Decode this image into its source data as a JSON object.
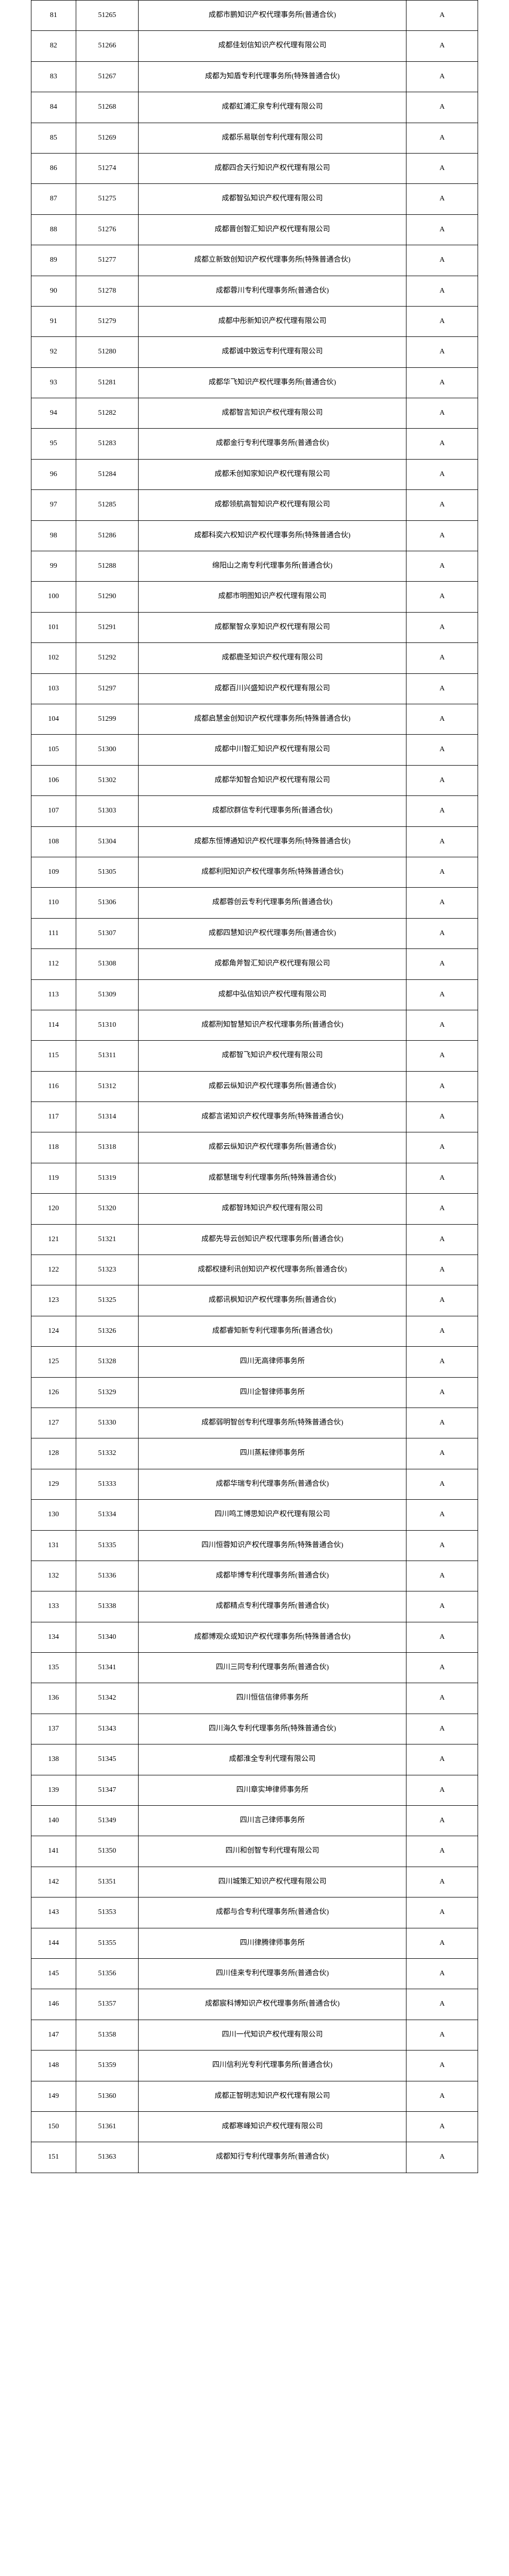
{
  "rows": [
    {
      "idx": 81,
      "code": "51265",
      "name": "成都市鹏知识产权代理事务所(普通合伙)",
      "grade": "A"
    },
    {
      "idx": 82,
      "code": "51266",
      "name": "成都佳划信知识产权代理有限公司",
      "grade": "A"
    },
    {
      "idx": 83,
      "code": "51267",
      "name": "成都为知盾专利代理事务所(特殊普通合伙)",
      "grade": "A"
    },
    {
      "idx": 84,
      "code": "51268",
      "name": "成都虹浦汇泉专利代理有限公司",
      "grade": "A"
    },
    {
      "idx": 85,
      "code": "51269",
      "name": "成都乐易联创专利代理有限公司",
      "grade": "A"
    },
    {
      "idx": 86,
      "code": "51274",
      "name": "成都四合天行知识产权代理有限公司",
      "grade": "A"
    },
    {
      "idx": 87,
      "code": "51275",
      "name": "成都智弘知识产权代理有限公司",
      "grade": "A"
    },
    {
      "idx": 88,
      "code": "51276",
      "name": "成都晋创智汇知识产权代理有限公司",
      "grade": "A"
    },
    {
      "idx": 89,
      "code": "51277",
      "name": "成都立新致创知识产权代理事务所(特殊普通合伙)",
      "grade": "A"
    },
    {
      "idx": 90,
      "code": "51278",
      "name": "成都蓉川专利代理事务所(普通合伙)",
      "grade": "A"
    },
    {
      "idx": 91,
      "code": "51279",
      "name": "成都中彤新知识产权代理有限公司",
      "grade": "A"
    },
    {
      "idx": 92,
      "code": "51280",
      "name": "成都诚中致远专利代理有限公司",
      "grade": "A"
    },
    {
      "idx": 93,
      "code": "51281",
      "name": "成都华飞知识产权代理事务所(普通合伙)",
      "grade": "A"
    },
    {
      "idx": 94,
      "code": "51282",
      "name": "成都智言知识产权代理有限公司",
      "grade": "A"
    },
    {
      "idx": 95,
      "code": "51283",
      "name": "成都金行专利代理事务所(普通合伙)",
      "grade": "A"
    },
    {
      "idx": 96,
      "code": "51284",
      "name": "成都禾创知家知识产权代理有限公司",
      "grade": "A"
    },
    {
      "idx": 97,
      "code": "51285",
      "name": "成都领航高智知识产权代理有限公司",
      "grade": "A"
    },
    {
      "idx": 98,
      "code": "51286",
      "name": "成都科奕六权知识产权代理事务所(特殊普通合伙)",
      "grade": "A"
    },
    {
      "idx": 99,
      "code": "51288",
      "name": "绵阳山之南专利代理事务所(普通合伙)",
      "grade": "A"
    },
    {
      "idx": 100,
      "code": "51290",
      "name": "成都市明图知识产权代理有限公司",
      "grade": "A"
    },
    {
      "idx": 101,
      "code": "51291",
      "name": "成都聚智众享知识产权代理有限公司",
      "grade": "A"
    },
    {
      "idx": 102,
      "code": "51292",
      "name": "成都鹿圣知识产权代理有限公司",
      "grade": "A"
    },
    {
      "idx": 103,
      "code": "51297",
      "name": "成都百川兴盛知识产权代理有限公司",
      "grade": "A"
    },
    {
      "idx": 104,
      "code": "51299",
      "name": "成都启慧金创知识产权代理事务所(特殊普通合伙)",
      "grade": "A"
    },
    {
      "idx": 105,
      "code": "51300",
      "name": "成都中川智汇知识产权代理有限公司",
      "grade": "A"
    },
    {
      "idx": 106,
      "code": "51302",
      "name": "成都华知智合知识产权代理有限公司",
      "grade": "A"
    },
    {
      "idx": 107,
      "code": "51303",
      "name": "成都欣群信专利代理事务所(普通合伙)",
      "grade": "A"
    },
    {
      "idx": 108,
      "code": "51304",
      "name": "成都东恒博通知识产权代理事务所(特殊普通合伙)",
      "grade": "A"
    },
    {
      "idx": 109,
      "code": "51305",
      "name": "成都利阳知识产权代理事务所(特殊普通合伙)",
      "grade": "A"
    },
    {
      "idx": 110,
      "code": "51306",
      "name": "成都蓉创云专利代理事务所(普通合伙)",
      "grade": "A"
    },
    {
      "idx": 111,
      "code": "51307",
      "name": "成都四慧知识产权代理事务所(普通合伙)",
      "grade": "A"
    },
    {
      "idx": 112,
      "code": "51308",
      "name": "成都角斧智汇知识产权代理有限公司",
      "grade": "A"
    },
    {
      "idx": 113,
      "code": "51309",
      "name": "成都中弘信知识产权代理有限公司",
      "grade": "A"
    },
    {
      "idx": 114,
      "code": "51310",
      "name": "成都刑知智慧知识产权代理事务所(普通合伙)",
      "grade": "A"
    },
    {
      "idx": 115,
      "code": "51311",
      "name": "成都智飞知识产权代理有限公司",
      "grade": "A"
    },
    {
      "idx": 116,
      "code": "51312",
      "name": "成都云纵知识产权代理事务所(普通合伙)",
      "grade": "A"
    },
    {
      "idx": 117,
      "code": "51314",
      "name": "成都言诺知识产权代理事务所(特殊普通合伙)",
      "grade": "A"
    },
    {
      "idx": 118,
      "code": "51318",
      "name": "成都云纵知识产权代理事务所(普通合伙)",
      "grade": "A"
    },
    {
      "idx": 119,
      "code": "51319",
      "name": "成都慧瑞专利代理事务所(特殊普通合伙)",
      "grade": "A"
    },
    {
      "idx": 120,
      "code": "51320",
      "name": "成都智玮知识产权代理有限公司",
      "grade": "A"
    },
    {
      "idx": 121,
      "code": "51321",
      "name": "成都先导云创知识产权代理事务所(普通合伙)",
      "grade": "A"
    },
    {
      "idx": 122,
      "code": "51323",
      "name": "成都权捷利讯创知识产权代理事务所(普通合伙)",
      "grade": "A"
    },
    {
      "idx": 123,
      "code": "51325",
      "name": "成都讯枫知识产权代理事务所(普通合伙)",
      "grade": "A"
    },
    {
      "idx": 124,
      "code": "51326",
      "name": "成都睿知新专利代理事务所(普通合伙)",
      "grade": "A"
    },
    {
      "idx": 125,
      "code": "51328",
      "name": "四川无高律师事务所",
      "grade": "A"
    },
    {
      "idx": 126,
      "code": "51329",
      "name": "四川企智律师事务所",
      "grade": "A"
    },
    {
      "idx": 127,
      "code": "51330",
      "name": "成都弱明智创专利代理事务所(特殊普通合伙)",
      "grade": "A"
    },
    {
      "idx": 128,
      "code": "51332",
      "name": "四川蒸耘律师事务所",
      "grade": "A"
    },
    {
      "idx": 129,
      "code": "51333",
      "name": "成都华瑞专利代理事务所(普通合伙)",
      "grade": "A"
    },
    {
      "idx": 130,
      "code": "51334",
      "name": "四川鸣工博思知识产权代理有限公司",
      "grade": "A"
    },
    {
      "idx": 131,
      "code": "51335",
      "name": "四川恒蓉知识产权代理事务所(特殊普通合伙)",
      "grade": "A"
    },
    {
      "idx": 132,
      "code": "51336",
      "name": "成都毕博专利代理事务所(普通合伙)",
      "grade": "A"
    },
    {
      "idx": 133,
      "code": "51338",
      "name": "成都精点专利代理事务所(普通合伙)",
      "grade": "A"
    },
    {
      "idx": 134,
      "code": "51340",
      "name": "成都博观众或知识产权代理事务所(特殊普通合伙)",
      "grade": "A"
    },
    {
      "idx": 135,
      "code": "51341",
      "name": "四川三同专利代理事务所(普通合伙)",
      "grade": "A"
    },
    {
      "idx": 136,
      "code": "51342",
      "name": "四川恒信信律师事务所",
      "grade": "A"
    },
    {
      "idx": 137,
      "code": "51343",
      "name": "四川海久专利代理事务所(特殊普通合伙)",
      "grade": "A"
    },
    {
      "idx": 138,
      "code": "51345",
      "name": "成都淮全专利代理有限公司",
      "grade": "A"
    },
    {
      "idx": 139,
      "code": "51347",
      "name": "四川章实坤律师事务所",
      "grade": "A"
    },
    {
      "idx": 140,
      "code": "51349",
      "name": "四川言己律师事务所",
      "grade": "A"
    },
    {
      "idx": 141,
      "code": "51350",
      "name": "四川和创智专利代理有限公司",
      "grade": "A"
    },
    {
      "idx": 142,
      "code": "51351",
      "name": "四川城策汇知识产权代理有限公司",
      "grade": "A"
    },
    {
      "idx": 143,
      "code": "51353",
      "name": "成都与合专利代理事务所(普通合伙)",
      "grade": "A"
    },
    {
      "idx": 144,
      "code": "51355",
      "name": "四川律腾律师事务所",
      "grade": "A"
    },
    {
      "idx": 145,
      "code": "51356",
      "name": "四川佳来专利代理事务所(普通合伙)",
      "grade": "A"
    },
    {
      "idx": 146,
      "code": "51357",
      "name": "成都宸科博知识产权代理事务所(普通合伙)",
      "grade": "A"
    },
    {
      "idx": 147,
      "code": "51358",
      "name": "四川一代知识产权代理有限公司",
      "grade": "A"
    },
    {
      "idx": 148,
      "code": "51359",
      "name": "四川信利光专利代理事务所(普通合伙)",
      "grade": "A"
    },
    {
      "idx": 149,
      "code": "51360",
      "name": "成都正智明志知识产权代理有限公司",
      "grade": "A"
    },
    {
      "idx": 150,
      "code": "51361",
      "name": "成都寒峰知识产权代理有限公司",
      "grade": "A"
    },
    {
      "idx": 151,
      "code": "51363",
      "name": "成都知行专利代理事务所(普通合伙)",
      "grade": "A"
    }
  ]
}
